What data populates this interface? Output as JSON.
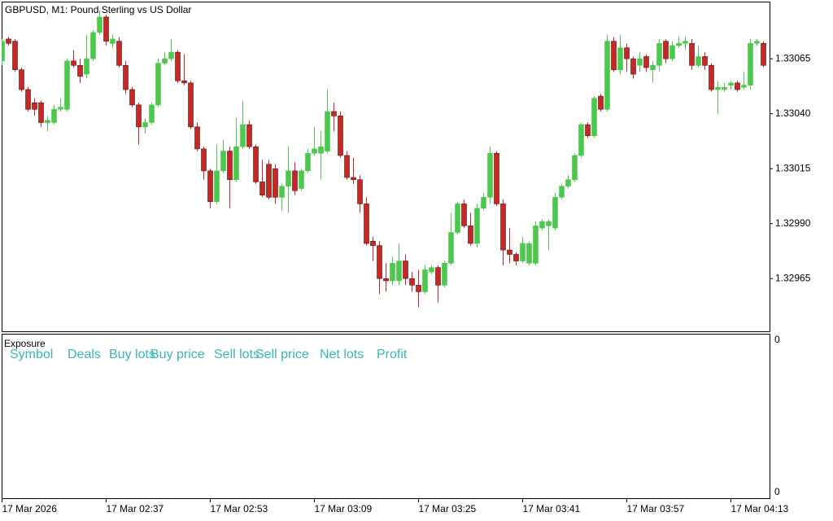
{
  "chart_data": {
    "type": "candlestick",
    "title": "GBPUSD, M1:  Pound Sterling vs US Dollar",
    "up_color": "#4cc84c",
    "down_color": "#c62828",
    "ylim": [
      1.32941,
      1.33091
    ],
    "yticks": [
      1.32965,
      {
        "value": 1.3299,
        "label": "1.32990"
      },
      1.33015,
      {
        "value": 1.3304,
        "label": "1.33040"
      },
      1.33065
    ],
    "xticks": [
      {
        "value": 0,
        "label": "17 Mar 2026"
      },
      {
        "value": 16,
        "label": "17 Mar 02:37"
      },
      {
        "value": 32,
        "label": "17 Mar 02:53"
      },
      {
        "value": 48,
        "label": "17 Mar 03:09"
      },
      {
        "value": 64,
        "label": "17 Mar 03:25"
      },
      {
        "value": 80,
        "label": "17 Mar 03:41"
      },
      {
        "value": 96,
        "label": "17 Mar 03:57"
      },
      {
        "value": 112,
        "label": "17 Mar 04:13"
      }
    ],
    "ohlc": [
      [
        1.33064,
        1.33074,
        1.33062,
        1.33073
      ],
      [
        1.33074,
        1.33075,
        1.33071,
        1.33072
      ],
      [
        1.33073,
        1.33074,
        1.33059,
        1.3306
      ],
      [
        1.3306,
        1.33061,
        1.3305,
        1.33051
      ],
      [
        1.33051,
        1.33052,
        1.33041,
        1.33042
      ],
      [
        1.33045,
        1.33047,
        1.33039,
        1.33042
      ],
      [
        1.33045,
        1.33046,
        1.33034,
        1.33036
      ],
      [
        1.33036,
        1.33039,
        1.33032,
        1.33037
      ],
      [
        1.33036,
        1.33044,
        1.33035,
        1.33042
      ],
      [
        1.33042,
        1.33047,
        1.33041,
        1.33043
      ],
      [
        1.33042,
        1.33065,
        1.33041,
        1.33064
      ],
      [
        1.33064,
        1.33069,
        1.33061,
        1.33062
      ],
      [
        1.33062,
        1.33065,
        1.33054,
        1.33057
      ],
      [
        1.33058,
        1.33076,
        1.33056,
        1.33065
      ],
      [
        1.33065,
        1.33078,
        1.33064,
        1.33077
      ],
      [
        1.33077,
        1.33087,
        1.33076,
        1.33084
      ],
      [
        1.33084,
        1.33085,
        1.33071,
        1.33073
      ],
      [
        1.33072,
        1.33076,
        1.3307,
        1.33074
      ],
      [
        1.33073,
        1.33075,
        1.33061,
        1.33062
      ],
      [
        1.33062,
        1.33064,
        1.33049,
        1.33051
      ],
      [
        1.33051,
        1.33052,
        1.33043,
        1.33044
      ],
      [
        1.33044,
        1.33045,
        1.33026,
        1.33034
      ],
      [
        1.33034,
        1.33038,
        1.33031,
        1.33036
      ],
      [
        1.33036,
        1.33045,
        1.33035,
        1.33044
      ],
      [
        1.33044,
        1.33065,
        1.33043,
        1.33063
      ],
      [
        1.33063,
        1.33068,
        1.33062,
        1.33065
      ],
      [
        1.33065,
        1.33074,
        1.33064,
        1.33068
      ],
      [
        1.33068,
        1.33069,
        1.33054,
        1.33055
      ],
      [
        1.33055,
        1.33067,
        1.33053,
        1.33054
      ],
      [
        1.33054,
        1.33055,
        1.33033,
        1.33034
      ],
      [
        1.33034,
        1.33036,
        1.33023,
        1.33024
      ],
      [
        1.33024,
        1.33025,
        1.3301,
        1.33014
      ],
      [
        1.33014,
        1.33015,
        1.32997,
        1.33
      ],
      [
        1.33,
        1.33026,
        1.32999,
        1.33014
      ],
      [
        1.33014,
        1.33028,
        1.33013,
        1.33023
      ],
      [
        1.33023,
        1.33025,
        1.32997,
        1.3301
      ],
      [
        1.3301,
        1.33038,
        1.33009,
        1.33025
      ],
      [
        1.33025,
        1.33046,
        1.33024,
        1.33035
      ],
      [
        1.33035,
        1.33037,
        1.33024,
        1.33025
      ],
      [
        1.33025,
        1.33026,
        1.33008,
        1.33009
      ],
      [
        1.33009,
        1.33019,
        1.33002,
        1.33003
      ],
      [
        1.33017,
        1.33019,
        1.33001,
        1.33002
      ],
      [
        1.33015,
        1.33017,
        1.32999,
        1.33002
      ],
      [
        1.33002,
        1.33008,
        1.32996,
        1.33007
      ],
      [
        1.33007,
        1.33025,
        1.32995,
        1.33014
      ],
      [
        1.33014,
        1.33018,
        1.33003,
        1.33005
      ],
      [
        1.33006,
        1.33015,
        1.33005,
        1.33014
      ],
      [
        1.33014,
        1.33024,
        1.33013,
        1.33022
      ],
      [
        1.33022,
        1.33034,
        1.33021,
        1.33024
      ],
      [
        1.33022,
        1.33032,
        1.3301,
        1.33025
      ],
      [
        1.33023,
        1.33051,
        1.33022,
        1.33041
      ],
      [
        1.33041,
        1.33045,
        1.33032,
        1.33039
      ],
      [
        1.33039,
        1.33041,
        1.3302,
        1.33021
      ],
      [
        1.33021,
        1.33023,
        1.3301,
        1.33011
      ],
      [
        1.33011,
        1.3302,
        1.33008,
        1.3301
      ],
      [
        1.3301,
        1.33012,
        1.32995,
        1.32999
      ],
      [
        1.32999,
        1.33002,
        1.3298,
        1.32981
      ],
      [
        1.32982,
        1.32984,
        1.32973,
        1.3298
      ],
      [
        1.3298,
        1.32982,
        1.32958,
        1.32965
      ],
      [
        1.32965,
        1.32972,
        1.32959,
        1.32964
      ],
      [
        1.32964,
        1.32975,
        1.32962,
        1.32972
      ],
      [
        1.32964,
        1.32981,
        1.32962,
        1.32973
      ],
      [
        1.32973,
        1.32976,
        1.32962,
        1.32965
      ],
      [
        1.32965,
        1.32968,
        1.32959,
        1.32962
      ],
      [
        1.32962,
        1.32969,
        1.32952,
        1.32959
      ],
      [
        1.32959,
        1.32971,
        1.32958,
        1.32969
      ],
      [
        1.32968,
        1.32971,
        1.32967,
        1.3297
      ],
      [
        1.3297,
        1.32971,
        1.32954,
        1.32962
      ],
      [
        1.32962,
        1.32973,
        1.32961,
        1.32972
      ],
      [
        1.32972,
        1.32995,
        1.32971,
        1.32986
      ],
      [
        1.32986,
        1.33,
        1.32985,
        1.32999
      ],
      [
        1.32999,
        1.33001,
        1.32988,
        1.32989
      ],
      [
        1.32989,
        1.32995,
        1.3298,
        1.32981
      ],
      [
        1.32981,
        1.32999,
        1.32979,
        1.32997
      ],
      [
        1.32997,
        1.33004,
        1.32996,
        1.33002
      ],
      [
        1.33002,
        1.33025,
        1.32999,
        1.33022
      ],
      [
        1.33022,
        1.33023,
        1.32998,
        1.32999
      ],
      [
        1.32999,
        1.33001,
        1.32971,
        1.32978
      ],
      [
        1.32978,
        1.32988,
        1.32972,
        1.32976
      ],
      [
        1.32976,
        1.32977,
        1.32971,
        1.32973
      ],
      [
        1.32973,
        1.32984,
        1.32972,
        1.32981
      ],
      [
        1.32972,
        1.32982,
        1.32971,
        1.32981
      ],
      [
        1.32972,
        1.32991,
        1.32971,
        1.32989
      ],
      [
        1.32988,
        1.32992,
        1.32987,
        1.32991
      ],
      [
        1.32989,
        1.32992,
        1.32978,
        1.32991
      ],
      [
        1.32988,
        1.33004,
        1.32987,
        1.33002
      ],
      [
        1.33002,
        1.33008,
        1.33001,
        1.33007
      ],
      [
        1.33007,
        1.33012,
        1.33006,
        1.3301
      ],
      [
        1.3301,
        1.33022,
        1.33009,
        1.33021
      ],
      [
        1.33021,
        1.33036,
        1.3302,
        1.33035
      ],
      [
        1.33035,
        1.33036,
        1.33029,
        1.3303
      ],
      [
        1.3303,
        1.33048,
        1.33029,
        1.33047
      ],
      [
        1.33048,
        1.33049,
        1.33041,
        1.33042
      ],
      [
        1.33042,
        1.33076,
        1.33041,
        1.33073
      ],
      [
        1.33073,
        1.33075,
        1.33059,
        1.3306
      ],
      [
        1.3306,
        1.33076,
        1.33058,
        1.3307
      ],
      [
        1.3307,
        1.33072,
        1.33059,
        1.33065
      ],
      [
        1.33065,
        1.33066,
        1.33056,
        1.33058
      ],
      [
        1.33062,
        1.33068,
        1.33059,
        1.33065
      ],
      [
        1.33066,
        1.33067,
        1.33059,
        1.33061
      ],
      [
        1.3306,
        1.33064,
        1.33054,
        1.33062
      ],
      [
        1.33062,
        1.33074,
        1.33059,
        1.33072
      ],
      [
        1.33073,
        1.33074,
        1.33063,
        1.33065
      ],
      [
        1.33065,
        1.33073,
        1.33064,
        1.33071
      ],
      [
        1.33071,
        1.33075,
        1.3307,
        1.33072
      ],
      [
        1.33072,
        1.33075,
        1.33069,
        1.33073
      ],
      [
        1.33072,
        1.33074,
        1.3306,
        1.33062
      ],
      [
        1.33062,
        1.33071,
        1.33061,
        1.33066
      ],
      [
        1.33066,
        1.33068,
        1.3306,
        1.33062
      ],
      [
        1.33062,
        1.33063,
        1.3305,
        1.33051
      ],
      [
        1.33051,
        1.33055,
        1.3304,
        1.33052
      ],
      [
        1.33051,
        1.33054,
        1.3305,
        1.33052
      ],
      [
        1.33053,
        1.33055,
        1.33051,
        1.33054
      ],
      [
        1.33054,
        1.33055,
        1.3305,
        1.33051
      ],
      [
        1.33052,
        1.33059,
        1.33051,
        1.33053
      ],
      [
        1.33053,
        1.33074,
        1.33051,
        1.33072
      ],
      [
        1.33072,
        1.33074,
        1.33071,
        1.33073
      ],
      [
        1.33072,
        1.33073,
        1.33061,
        1.33062
      ]
    ]
  },
  "subwindow": {
    "title": "Exposure",
    "columns": [
      "Symbol",
      "Deals",
      "Buy lots",
      "Buy price",
      "Sell lots",
      "Sell price",
      "Net lots",
      "Profit"
    ],
    "axis_labels": [
      "0",
      "0"
    ]
  }
}
